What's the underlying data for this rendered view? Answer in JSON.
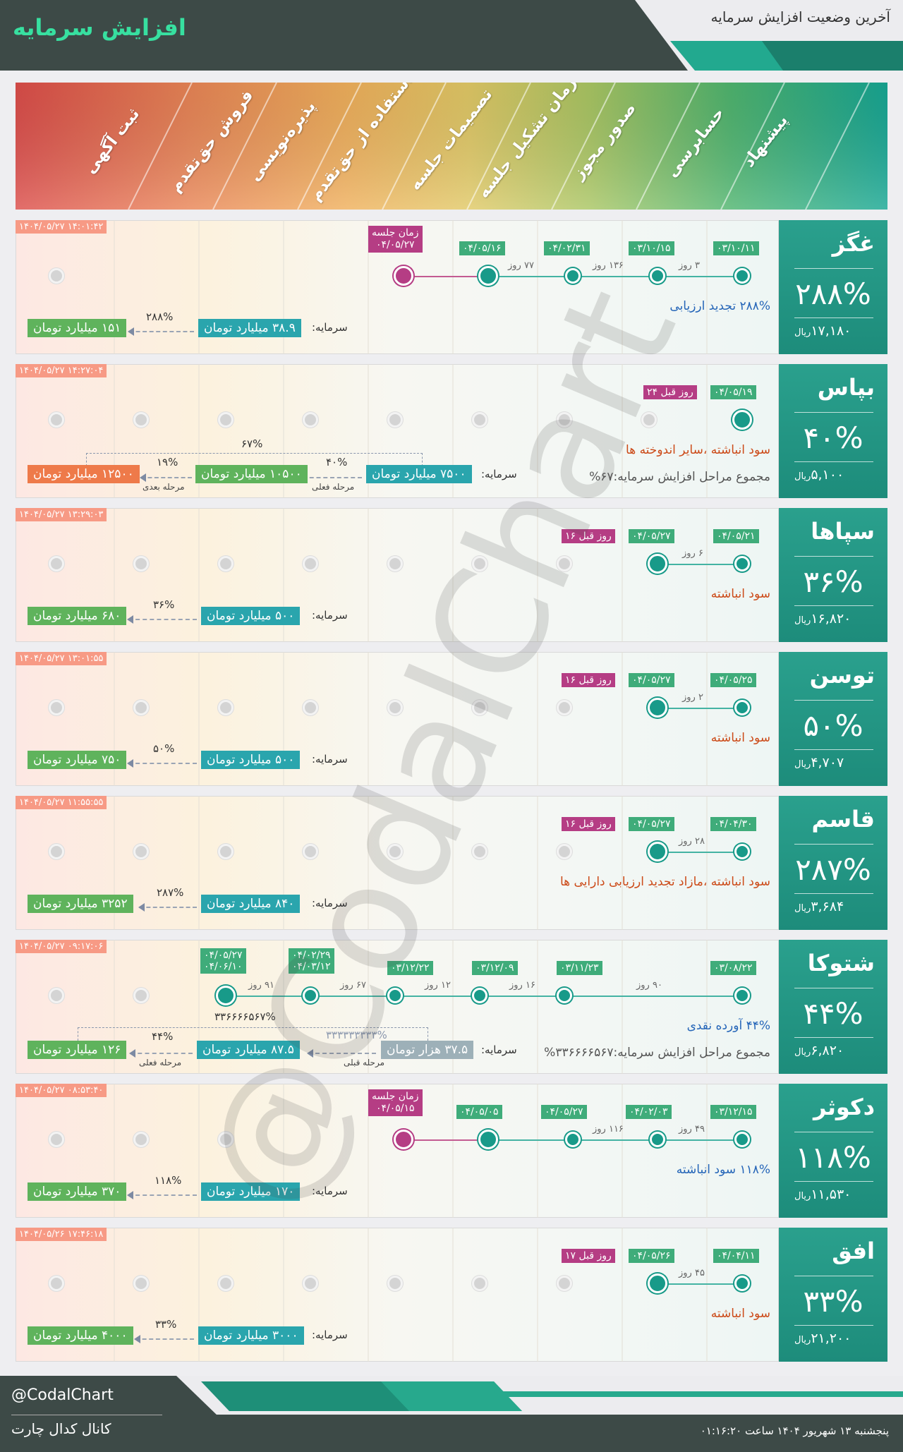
{
  "header": {
    "title": "افزایش سرمایه",
    "subtitle": "آخرین وضعیت افزایش سرمایه"
  },
  "stages": [
    "پیشنهاد",
    "حسابرسی",
    "صدور مجوز",
    "زمان تشکیل جلسه",
    "تصمیمات جلسه",
    "استفاده از حق‌تقدم",
    "پذیره‌نویسی",
    "فروش حق‌تقدم",
    "ثبت آگهی"
  ],
  "colors": {
    "stage_gradient": [
      "#1bab93",
      "#54b76d",
      "#b3c661",
      "#e3cb62",
      "#f2ae5a",
      "#ee8a5b",
      "#e46651",
      "#dc4d4a"
    ],
    "side": "#1d9b88",
    "timestamp": "#f79a85"
  },
  "cards": [
    {
      "name": "غگز",
      "pct": "۲۸۸%",
      "price": "۱۷,۱۸۰",
      "unit": "ریال",
      "timestamp": "۱۴۰۴/۰۵/۲۷ ۱۴:۰۱:۴۲",
      "dates": [
        "۰۳/۱۰/۱۱",
        "۰۳/۱۰/۱۵",
        "۰۴/۰۲/۳۱",
        "۰۴/۰۵/۱۶"
      ],
      "meeting": {
        "title": "زمان جلسه",
        "date": "۰۴/۰۵/۲۷"
      },
      "days": [
        "۳ روز",
        "۱۳۶ روز",
        "۷۷ روز"
      ],
      "note1": "۲۸۸% تجدید ارزیابی",
      "capital_label": "سرمایه:",
      "cap_from": "۳۸.۹ میلیارد تومان",
      "cap_pct": "۲۸۸%",
      "cap_to": "۱۵۱ میلیارد تومان"
    },
    {
      "name": "بپاس",
      "pct": "۴۰%",
      "price": "۵,۱۰۰",
      "unit": "ریال",
      "timestamp": "۱۴۰۴/۰۵/۲۷ ۱۴:۲۷:۰۴",
      "dates": [
        "۰۴/۰۵/۱۹"
      ],
      "ago": "۲۴ روز قبل",
      "note1": "سود انباشته ،سایر اندوخته ها",
      "note2": "مجموع مراحل افزایش سرمایه:۶۷%",
      "capital_label": "سرمایه:",
      "cap_from": "۷۵۰۰ میلیارد تومان",
      "cap_pct": "۴۰%",
      "cap_mid": "۱۰۵۰۰ میلیارد تومان",
      "cap_pct2": "۱۹%",
      "cap_to": "۱۲۵۰۰ میلیارد تومان",
      "total_pct": "۶۷%",
      "stage_now": "مرحله فعلی",
      "stage_next": "مرحله بعدی"
    },
    {
      "name": "سپاها",
      "pct": "۳۶%",
      "price": "۱۶,۸۲۰",
      "unit": "ریال",
      "timestamp": "۱۴۰۴/۰۵/۲۷ ۱۳:۲۹:۰۳",
      "dates": [
        "۰۴/۰۵/۲۱",
        "۰۴/۰۵/۲۷"
      ],
      "ago": "۱۶ روز قبل",
      "days": [
        "۶ روز"
      ],
      "note1": "سود انباشته",
      "capital_label": "سرمایه:",
      "cap_from": "۵۰۰ میلیارد تومان",
      "cap_pct": "۳۶%",
      "cap_to": "۶۸۰ میلیارد تومان"
    },
    {
      "name": "توسن",
      "pct": "۵۰%",
      "price": "۴,۷۰۷",
      "unit": "ریال",
      "timestamp": "۱۴۰۴/۰۵/۲۷ ۱۳:۰۱:۵۵",
      "dates": [
        "۰۴/۰۵/۲۵",
        "۰۴/۰۵/۲۷"
      ],
      "ago": "۱۶ روز قبل",
      "days": [
        "۲ روز"
      ],
      "note1": "سود انباشته",
      "capital_label": "سرمایه:",
      "cap_from": "۵۰۰ میلیارد تومان",
      "cap_pct": "۵۰%",
      "cap_to": "۷۵۰ میلیارد تومان"
    },
    {
      "name": "قاسم",
      "pct": "۲۸۷%",
      "price": "۳,۶۸۴",
      "unit": "ریال",
      "timestamp": "۱۴۰۴/۰۵/۲۷ ۱۱:۵۵:۵۵",
      "dates": [
        "۰۴/۰۴/۳۰",
        "۰۴/۰۵/۲۷"
      ],
      "ago": "۱۶ روز قبل",
      "days": [
        "۲۸ روز"
      ],
      "note1": "سود انباشته ،مازاد تجدید ارزیابی دارایی ها",
      "capital_label": "سرمایه:",
      "cap_from": "۸۴۰ میلیارد تومان",
      "cap_pct": "۲۸۷%",
      "cap_to": "۳۲۵۲ میلیارد تومان"
    },
    {
      "name": "شتوکا",
      "pct": "۴۴%",
      "price": "۶,۸۲۰",
      "unit": "ریال",
      "timestamp": "۱۴۰۴/۰۵/۲۷ ۰۹:۱۷:۰۶",
      "dates": [
        "۰۳/۰۸/۲۲",
        "۰۳/۱۱/۲۳",
        "۰۳/۱۲/۰۹",
        "۰۳/۱۲/۲۲"
      ],
      "dates_stack1": [
        "۰۴/۰۲/۲۹",
        "۰۴/۰۳/۱۲"
      ],
      "dates_stack2": [
        "۰۴/۰۵/۲۷",
        "۰۴/۰۶/۱۰"
      ],
      "days": [
        "۹۰ روز",
        "۱۶ روز",
        "۱۲ روز",
        "۶۷ روز",
        "۹۱ روز"
      ],
      "note1": "۴۴% آورده نقدی",
      "note2": "مجموع مراحل افزایش سرمایه:۳۳۶۶۶۶۵۶۷%",
      "capital_label": "سرمایه:",
      "cap_from": "۳۷.۵ هزار تومان",
      "cap_pct_prev": "۳۳۳۳۳۳۳۳۳%",
      "cap_mid": "۸۷.۵ میلیارد تومان",
      "cap_pct": "۴۴%",
      "cap_to": "۱۲۶ میلیارد تومان",
      "total_pct": "۳۳۶۶۶۶۵۶۷%",
      "stage_prev": "مرحله قبلی",
      "stage_now": "مرحله فعلی"
    },
    {
      "name": "دکوثر",
      "pct": "۱۱۸%",
      "price": "۱۱,۵۳۰",
      "unit": "ریال",
      "timestamp": "۱۴۰۴/۰۵/۲۷ ۰۸:۵۳:۴۰",
      "dates": [
        "۰۳/۱۲/۱۵",
        "۰۴/۰۲/۰۳",
        "۰۴/۰۵/۲۷",
        "۰۴/۰۵/۰۵"
      ],
      "meeting": {
        "title": "زمان جلسه",
        "date": "۰۴/۰۵/۱۵"
      },
      "days": [
        "۴۹ روز",
        "۱۱۶ روز"
      ],
      "note1": "۱۱۸% سود انباشته",
      "capital_label": "سرمایه:",
      "cap_from": "۱۷۰ میلیارد تومان",
      "cap_pct": "۱۱۸%",
      "cap_to": "۳۷۰ میلیارد تومان"
    },
    {
      "name": "افق",
      "pct": "۳۳%",
      "price": "۲۱,۲۰۰",
      "unit": "ریال",
      "timestamp": "۱۴۰۴/۰۵/۲۶ ۱۷:۴۶:۱۸",
      "dates": [
        "۰۴/۰۴/۱۱",
        "۰۴/۰۵/۲۶"
      ],
      "ago": "۱۷ روز قبل",
      "days": [
        "۴۵ روز"
      ],
      "note1": "سود انباشته",
      "capital_label": "سرمایه:",
      "cap_from": "۳۰۰۰ میلیارد تومان",
      "cap_pct": "۳۳%",
      "cap_to": "۴۰۰۰ میلیارد تومان"
    }
  ],
  "watermark": "@CodalChart",
  "footer": {
    "user": "@CodalChart",
    "channel": "کانال کدال چارت",
    "date": "پنجشنبه ۱۳ شهریور ۱۴۰۴ ساعت ۰۱:۱۶:۲۰"
  }
}
